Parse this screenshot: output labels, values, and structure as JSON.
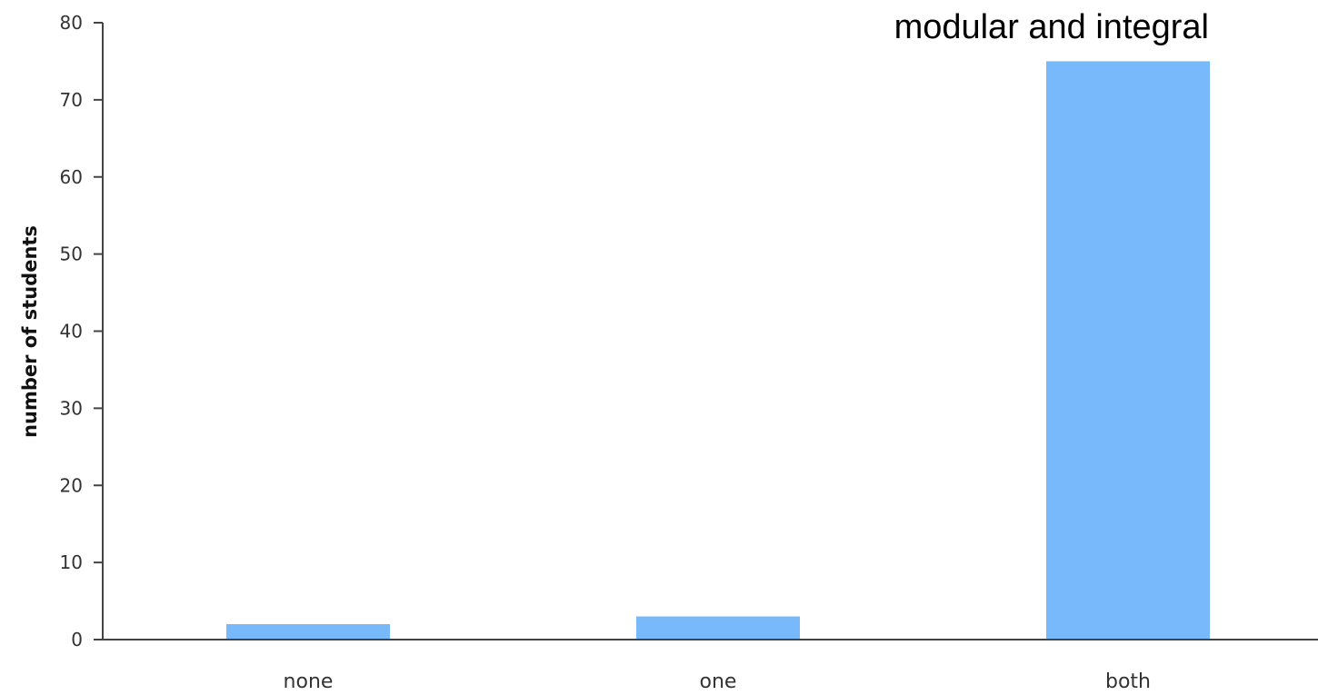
{
  "chart_data": {
    "type": "bar",
    "title": "modular and integral",
    "ylabel": "number of students",
    "xlabel": "",
    "categories": [
      "none",
      "one",
      "both"
    ],
    "values": [
      2,
      3,
      75
    ],
    "ylim": [
      0,
      80
    ],
    "yticks": [
      0,
      10,
      20,
      30,
      40,
      50,
      60,
      70,
      80
    ],
    "grid": false,
    "legend": "none",
    "bar_color": "#77b9fb"
  }
}
